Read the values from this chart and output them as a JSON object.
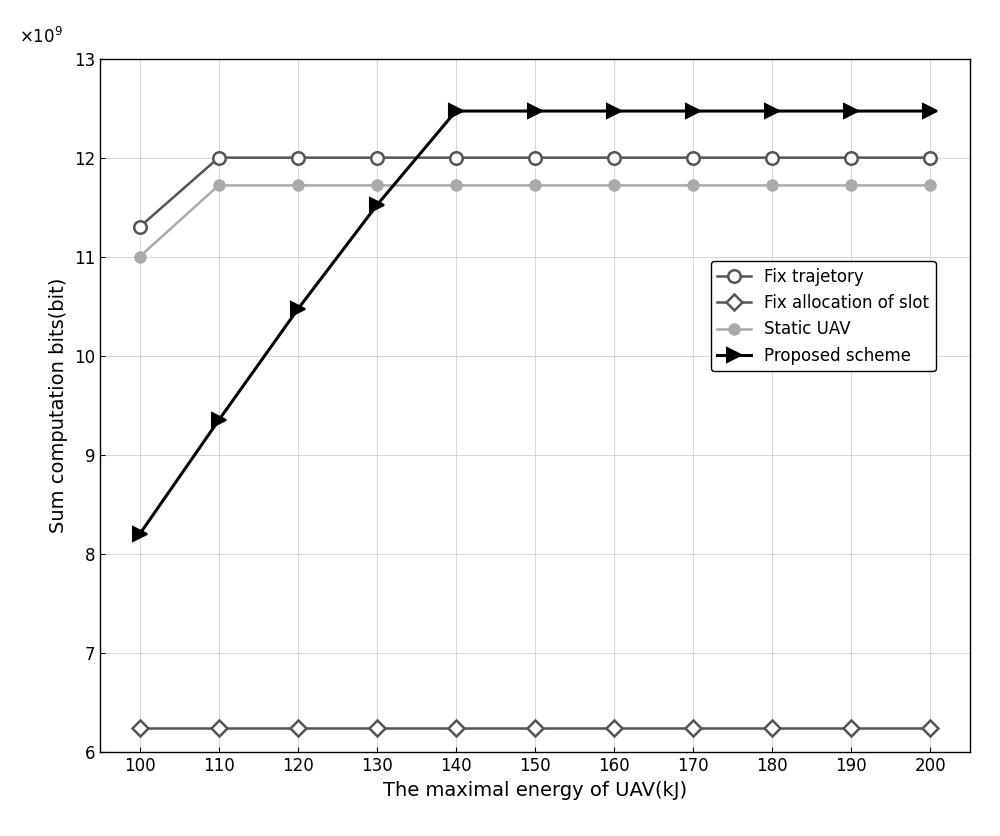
{
  "x": [
    100,
    110,
    120,
    130,
    140,
    150,
    160,
    170,
    180,
    190,
    200
  ],
  "fix_trajectory": [
    11300000000.0,
    12000000000.0,
    12000000000.0,
    12000000000.0,
    12000000000.0,
    12000000000.0,
    12000000000.0,
    12000000000.0,
    12000000000.0,
    12000000000.0,
    12000000000.0
  ],
  "fix_allocation": [
    6250000000.0,
    6250000000.0,
    6250000000.0,
    6250000000.0,
    6250000000.0,
    6250000000.0,
    6250000000.0,
    6250000000.0,
    6250000000.0,
    6250000000.0,
    6250000000.0
  ],
  "static_uav": [
    11000000000.0,
    11720000000.0,
    11720000000.0,
    11720000000.0,
    11720000000.0,
    11720000000.0,
    11720000000.0,
    11720000000.0,
    11720000000.0,
    11720000000.0,
    11720000000.0
  ],
  "proposed_scheme": [
    8200000000.0,
    9350000000.0,
    10470000000.0,
    11520000000.0,
    12470000000.0,
    12470000000.0,
    12470000000.0,
    12470000000.0,
    12470000000.0,
    12470000000.0,
    12470000000.0
  ],
  "xlabel": "The maximal energy of UAV(kJ)",
  "ylabel": "Sum computation bits(bit)",
  "ylim": [
    6000000000.0,
    13000000000.0
  ],
  "xlim": [
    95,
    205
  ],
  "yticks": [
    6000000000.0,
    7000000000.0,
    8000000000.0,
    9000000000.0,
    10000000000.0,
    11000000000.0,
    12000000000.0,
    13000000000.0
  ],
  "xticks": [
    100,
    110,
    120,
    130,
    140,
    150,
    160,
    170,
    180,
    190,
    200
  ],
  "fix_trajectory_color": "#555555",
  "fix_allocation_color": "#555555",
  "static_uav_color": "#aaaaaa",
  "proposed_scheme_color": "#000000",
  "legend_labels": [
    "Fix trajetory",
    "Fix allocation of slot",
    "Static UAV",
    "Proposed scheme"
  ],
  "figsize": [
    10.0,
    8.36
  ],
  "dpi": 100
}
